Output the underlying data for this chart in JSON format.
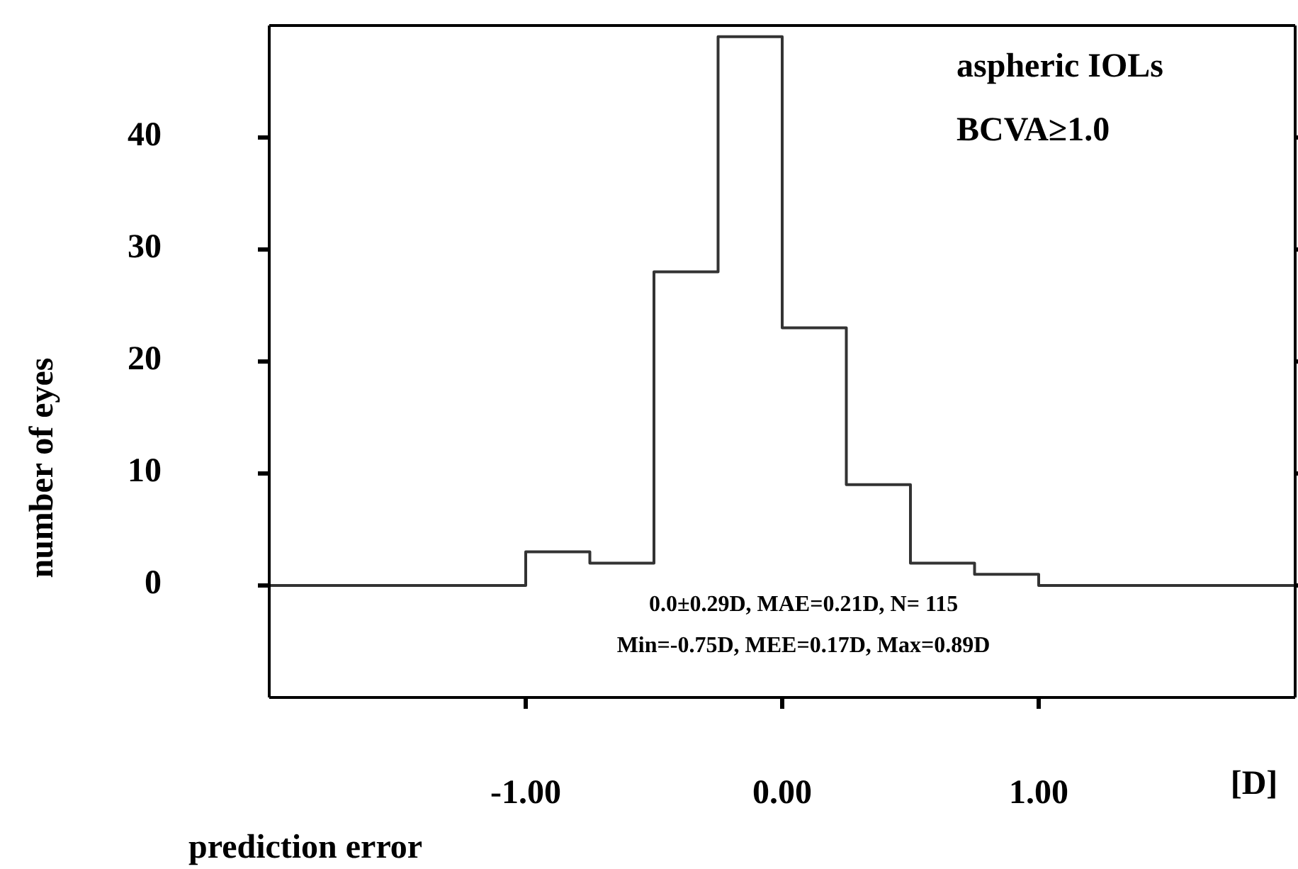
{
  "chart_data": {
    "type": "histogram",
    "xlabel": "prediction error",
    "ylabel": "number of eyes",
    "annotations": [
      "aspheric IOLs",
      "BCVA≥1.0",
      "0.0±0.29D, MAE=0.21D, N= 115",
      "Min=-0.75D, MEE=0.17D, Max=0.89D",
      "[D]"
    ],
    "bins": [
      -2,
      -1,
      -0.75,
      -0.5,
      -0.25,
      0,
      0.25,
      0.5,
      0.75,
      1,
      2
    ],
    "values": [
      0,
      3,
      2,
      28,
      49,
      23,
      9,
      2,
      1,
      0
    ],
    "color": "#333333",
    "xlim": [
      -2,
      2
    ],
    "xticks": [
      {
        "value": -1,
        "label": "-1.00"
      },
      {
        "value": 0,
        "label": "0.00"
      },
      {
        "value": 1,
        "label": "1.00"
      }
    ],
    "ylim": [
      -10,
      50
    ],
    "yticks": [
      0,
      10,
      20,
      30,
      40
    ]
  }
}
